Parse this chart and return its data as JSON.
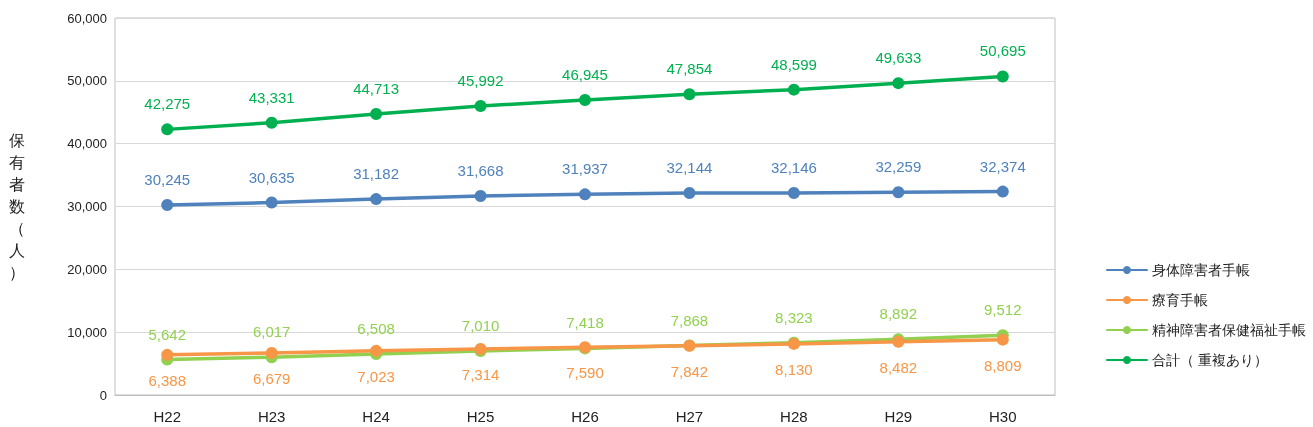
{
  "chart_data": {
    "type": "line",
    "ylabel": "保有者数（人）",
    "categories": [
      "H22",
      "H23",
      "H24",
      "H25",
      "H26",
      "H27",
      "H28",
      "H29",
      "H30"
    ],
    "series": [
      {
        "name": "身体障害者手帳",
        "color": "#4f81bd",
        "values": [
          30245,
          30635,
          31182,
          31668,
          31937,
          32144,
          32146,
          32259,
          32374
        ],
        "value_labels": [
          "30,245",
          "30,635",
          "31,182",
          "31,668",
          "31,937",
          "32,144",
          "32,146",
          "32,259",
          "32,374"
        ]
      },
      {
        "name": "療育手帳",
        "color": "#f79646",
        "values": [
          6388,
          6679,
          7023,
          7314,
          7590,
          7842,
          8130,
          8482,
          8809
        ],
        "value_labels": [
          "6,388",
          "6,679",
          "7,023",
          "7,314",
          "7,590",
          "7,842",
          "8,130",
          "8,482",
          "8,809"
        ]
      },
      {
        "name": "精神障害者保健福祉手帳",
        "color": "#92d050",
        "values": [
          5642,
          6017,
          6508,
          7010,
          7418,
          7868,
          8323,
          8892,
          9512
        ],
        "value_labels": [
          "5,642",
          "6,017",
          "6,508",
          "7,010",
          "7,418",
          "7,868",
          "8,323",
          "8,892",
          "9,512"
        ]
      },
      {
        "name": "合計（ 重複あり）",
        "color": "#00b050",
        "values": [
          42275,
          43331,
          44713,
          45992,
          46945,
          47854,
          48599,
          49633,
          50695
        ],
        "value_labels": [
          "42,275",
          "43,331",
          "44,713",
          "45,992",
          "46,945",
          "47,854",
          "48,599",
          "49,633",
          "50,695"
        ]
      }
    ],
    "ylim": [
      0,
      60000
    ],
    "yticks": [
      0,
      {
        "value": 10000,
        "label": "10,000"
      },
      {
        "value": 20000,
        "label": "20,000"
      },
      {
        "value": 30000,
        "label": "30,000"
      },
      {
        "value": 40000,
        "label": "40,000"
      },
      {
        "value": 50000,
        "label": "50,000"
      },
      {
        "value": 60000,
        "label": "60,000"
      }
    ],
    "grid": "y",
    "legend": "right",
    "marker": "circle",
    "line_style": "solid"
  }
}
